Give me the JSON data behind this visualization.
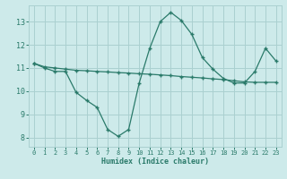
{
  "x": [
    0,
    1,
    2,
    3,
    4,
    5,
    6,
    7,
    8,
    9,
    10,
    11,
    12,
    13,
    14,
    15,
    16,
    17,
    18,
    19,
    20,
    21,
    22,
    23
  ],
  "line1_y": [
    11.2,
    11.0,
    10.85,
    10.85,
    9.95,
    9.6,
    9.3,
    8.35,
    8.05,
    8.35,
    10.35,
    11.85,
    13.0,
    13.4,
    13.05,
    12.45,
    11.45,
    10.95,
    10.55,
    10.35,
    10.35,
    10.85,
    11.85,
    11.3
  ],
  "line2_y": [
    11.2,
    11.05,
    11.0,
    10.95,
    10.9,
    10.88,
    10.85,
    10.83,
    10.8,
    10.78,
    10.75,
    10.73,
    10.7,
    10.67,
    10.63,
    10.6,
    10.57,
    10.53,
    10.5,
    10.45,
    10.4,
    10.38,
    10.38,
    10.38
  ],
  "color": "#2a7a6a",
  "bg_color": "#cdeaea",
  "grid_color": "#aad0d0",
  "xlabel": "Humidex (Indice chaleur)",
  "ylim": [
    7.6,
    13.7
  ],
  "xlim": [
    -0.5,
    23.5
  ],
  "yticks": [
    8,
    9,
    10,
    11,
    12,
    13
  ],
  "xticks": [
    0,
    1,
    2,
    3,
    4,
    5,
    6,
    7,
    8,
    9,
    10,
    11,
    12,
    13,
    14,
    15,
    16,
    17,
    18,
    19,
    20,
    21,
    22,
    23
  ]
}
